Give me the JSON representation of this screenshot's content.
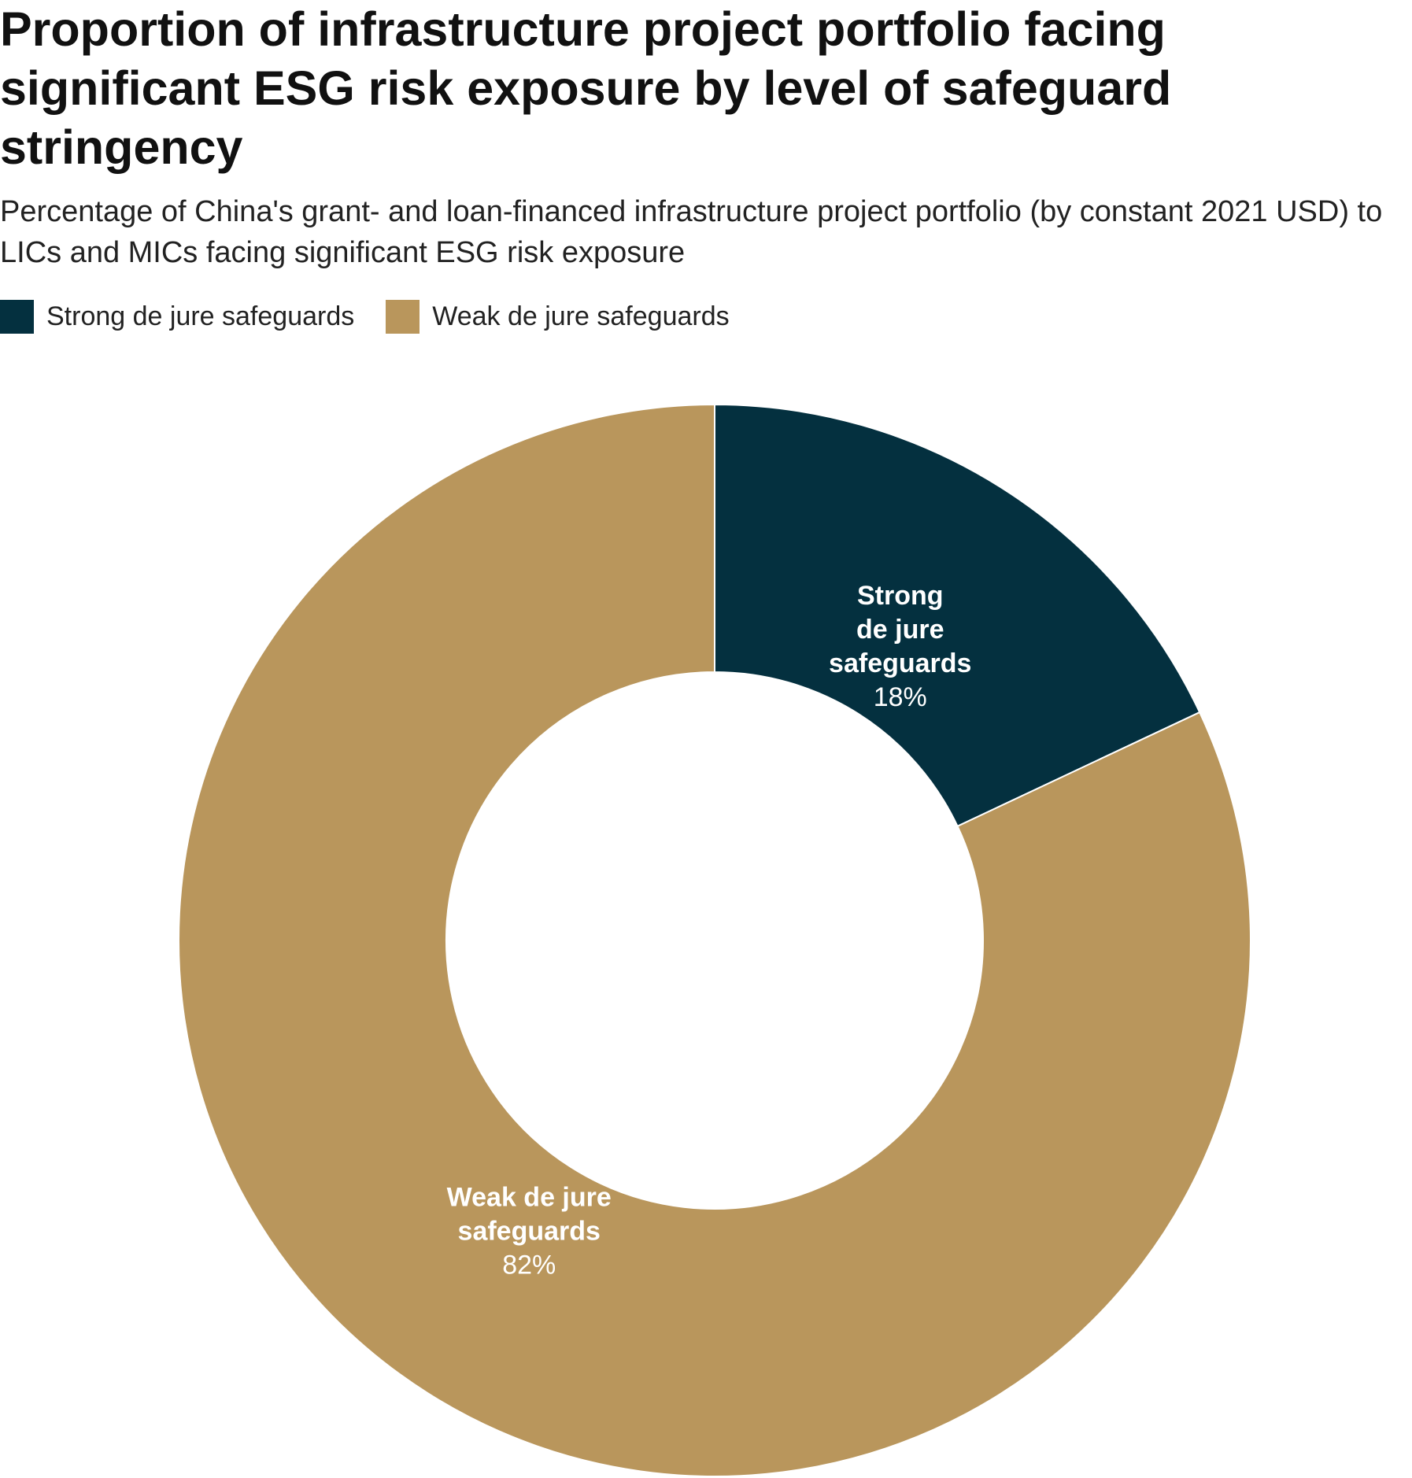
{
  "title": "Proportion of infrastructure project portfolio facing significant ESG risk exposure by level of safeguard stringency",
  "subtitle": "Percentage of China's grant- and loan-financed infrastructure project portfolio (by constant 2021 USD) to LICs and MICs facing significant ESG risk exposure",
  "legend": [
    {
      "label": "Strong de jure safeguards",
      "color": "#04303f"
    },
    {
      "label": "Weak de jure safeguards",
      "color": "#b9965c"
    }
  ],
  "chart_data": {
    "type": "pie",
    "variant": "donut",
    "title": "Proportion of infrastructure project portfolio facing significant ESG risk exposure by level of safeguard stringency",
    "subtitle": "Percentage of China's grant- and loan-financed infrastructure project portfolio (by constant 2021 USD) to LICs and MICs facing significant ESG risk exposure",
    "legend_position": "top-left",
    "slices": [
      {
        "name": "Strong de jure safeguards",
        "value": 18,
        "label_lines": [
          "Strong",
          "de jure",
          "safeguards"
        ],
        "value_label": "18%",
        "color": "#04303f"
      },
      {
        "name": "Weak de jure safeguards",
        "value": 82,
        "label_lines": [
          "Weak de jure",
          "safeguards"
        ],
        "value_label": "82%",
        "color": "#b9965c"
      }
    ]
  }
}
